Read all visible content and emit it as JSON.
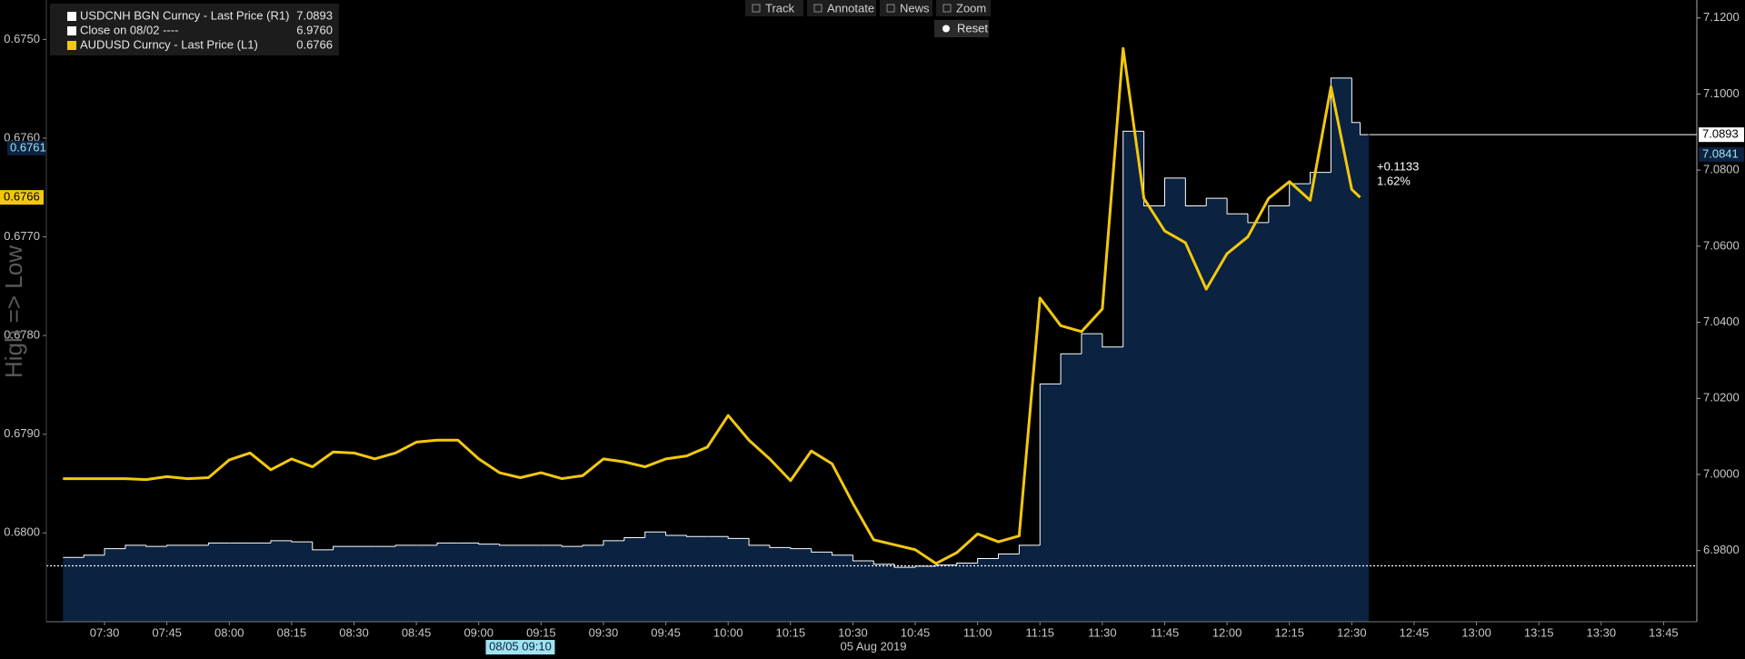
{
  "toolbar": {
    "items": [
      "Track",
      "Annotate",
      "News",
      "Zoom"
    ],
    "reset": "Reset"
  },
  "chart_data": {
    "type": "line",
    "axis_label": "High => Low",
    "date_label": "05 Aug 2019",
    "x": [
      "07:20",
      "07:25",
      "07:30",
      "07:35",
      "07:40",
      "07:45",
      "07:50",
      "07:55",
      "08:00",
      "08:05",
      "08:10",
      "08:15",
      "08:20",
      "08:25",
      "08:30",
      "08:35",
      "08:40",
      "08:45",
      "08:50",
      "08:55",
      "09:00",
      "09:05",
      "09:10",
      "09:15",
      "09:20",
      "09:25",
      "09:30",
      "09:35",
      "09:40",
      "09:45",
      "09:50",
      "09:55",
      "10:00",
      "10:05",
      "10:10",
      "10:15",
      "10:20",
      "10:25",
      "10:30",
      "10:35",
      "10:40",
      "10:45",
      "10:50",
      "10:55",
      "11:00",
      "11:05",
      "11:10",
      "11:15",
      "11:20",
      "11:25",
      "11:30",
      "11:35",
      "11:40",
      "11:45",
      "11:50",
      "11:55",
      "12:00",
      "12:05",
      "12:10",
      "12:15",
      "12:20",
      "12:25",
      "12:30",
      "12:32"
    ],
    "xlim": [
      "07:16",
      "13:53"
    ],
    "xticks": [
      "07:30",
      "07:45",
      "08:00",
      "08:15",
      "08:30",
      "08:45",
      "09:00",
      "09:15",
      "09:30",
      "09:45",
      "10:00",
      "10:15",
      "10:30",
      "10:45",
      "11:00",
      "11:15",
      "11:30",
      "11:45",
      "12:00",
      "12:15",
      "12:30",
      "12:45",
      "13:00",
      "13:15",
      "13:30",
      "13:45"
    ],
    "ylim": [
      0.6746,
      0.6809
    ],
    "yinvert": true,
    "yticks": [
      {
        "value": 0.675,
        "label": "0.6750"
      },
      {
        "value": 0.676,
        "label": "0.6760"
      },
      {
        "value": 0.677,
        "label": "0.6770"
      },
      {
        "value": 0.678,
        "label": "0.6780"
      },
      {
        "value": 0.679,
        "label": "0.6790"
      },
      {
        "value": 0.68,
        "label": "0.6800"
      }
    ],
    "y2lim": [
      6.9613,
      7.1247
    ],
    "y2ticks": [
      {
        "value": 6.98,
        "label": "6.9800"
      },
      {
        "value": 7.0,
        "label": "7.0000"
      },
      {
        "value": 7.02,
        "label": "7.0200"
      },
      {
        "value": 7.04,
        "label": "7.0400"
      },
      {
        "value": 7.06,
        "label": "7.0600"
      },
      {
        "value": 7.08,
        "label": "7.0800"
      },
      {
        "value": 7.1,
        "label": "7.1000"
      },
      {
        "value": 7.12,
        "label": "7.1200"
      }
    ],
    "series": [
      {
        "name": "USDCNH BGN Curncy - Last Price (R1)",
        "axis": "y2",
        "style": "step-area",
        "color": "#ffffff",
        "fill": "#0b2240",
        "values": [
          6.9782,
          6.9788,
          6.9805,
          6.9814,
          6.9811,
          6.9814,
          6.9814,
          6.982,
          6.982,
          6.982,
          6.9826,
          6.9823,
          6.9802,
          6.9811,
          6.9811,
          6.9811,
          6.9814,
          6.9814,
          6.982,
          6.982,
          6.9817,
          6.9814,
          6.9814,
          6.9814,
          6.9811,
          6.9814,
          6.9826,
          6.9834,
          6.9849,
          6.984,
          6.9837,
          6.9837,
          6.9832,
          6.9814,
          6.9808,
          6.9805,
          6.9796,
          6.9788,
          6.9773,
          6.9764,
          6.9756,
          6.9759,
          6.9762,
          6.9767,
          6.9779,
          6.9791,
          6.9814,
          7.0238,
          7.0317,
          7.037,
          7.0335,
          7.0902,
          7.0706,
          7.0779,
          7.0706,
          7.0726,
          7.0685,
          7.0662,
          7.0706,
          7.0764,
          7.0794,
          7.1042,
          7.0925,
          7.0893
        ]
      },
      {
        "name": "AUDUSD Curncy - Last Price (L1)",
        "axis": "y",
        "style": "line",
        "color": "#f2c80f",
        "values": [
          0.67945,
          0.67945,
          0.67945,
          0.67945,
          0.67946,
          0.67943,
          0.67945,
          0.67944,
          0.67926,
          0.67919,
          0.67936,
          0.67925,
          0.67933,
          0.67918,
          0.67919,
          0.67925,
          0.67919,
          0.67908,
          0.67906,
          0.67906,
          0.67925,
          0.67939,
          0.67944,
          0.67939,
          0.67945,
          0.67942,
          0.67925,
          0.67928,
          0.67933,
          0.67925,
          0.67922,
          0.67913,
          0.67881,
          0.67906,
          0.67925,
          0.67947,
          0.67917,
          0.6793,
          0.6797,
          0.68007,
          0.68012,
          0.68017,
          0.68031,
          0.6802,
          0.68001,
          0.68009,
          0.68003,
          0.67762,
          0.6779,
          0.67796,
          0.67773,
          0.67509,
          0.67661,
          0.67694,
          0.67706,
          0.67753,
          0.67717,
          0.677,
          0.67661,
          0.67644,
          0.67663,
          0.67548,
          0.67652,
          0.6766
        ]
      }
    ],
    "reference_line": {
      "name": "Close on 08/02 ----",
      "value": 6.976,
      "value_label": "6.9760",
      "axis": "y2",
      "color": "#ffffff"
    },
    "change": {
      "value": 0.1133,
      "label": "+0.1133"
    },
    "change_pct": {
      "value": 1.62,
      "label": "1.62%"
    },
    "crosshair": {
      "x_label": "08/05 09:10",
      "y_left": 0.6761,
      "y_right": 7.0841
    }
  }
}
